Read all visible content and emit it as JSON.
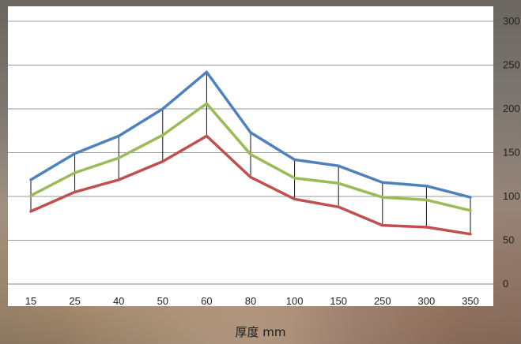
{
  "chart_data": {
    "type": "line",
    "title": "",
    "xlabel": "厚度 mm",
    "ylabel": "",
    "categories": [
      "15",
      "25",
      "40",
      "50",
      "60",
      "80",
      "100",
      "150",
      "250",
      "300",
      "350"
    ],
    "series": [
      {
        "values": [
          119,
          149,
          169,
          200,
          242,
          173,
          142,
          135,
          116,
          112,
          99
        ],
        "color": "#4f81bd"
      },
      {
        "values": [
          101,
          127,
          144,
          170,
          206,
          148,
          121,
          115,
          99,
          96,
          84
        ],
        "color": "#9bbb59"
      },
      {
        "values": [
          83,
          105,
          119,
          140,
          169,
          122,
          97,
          88,
          67,
          65,
          57
        ],
        "color": "#c0504d"
      }
    ],
    "high_low_lines": true,
    "ylim": [
      0,
      300
    ],
    "yticks": [
      "0",
      "50",
      "100",
      "150",
      "200",
      "250",
      "300"
    ],
    "y_axis_side": "right",
    "grid": true,
    "legend": false
  }
}
